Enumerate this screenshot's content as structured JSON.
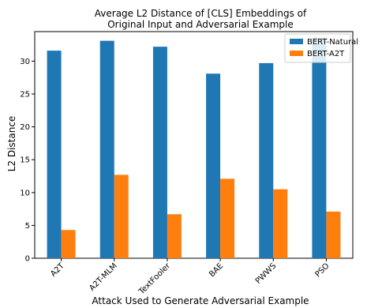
{
  "chart_data": {
    "type": "bar",
    "title": "Average L2 Distance of [CLS] Embeddings of",
    "subtitle": "Original Input and Adversarial Example",
    "xlabel": "Attack Used to Generate Adversarial Example",
    "ylabel": "L2 Distance",
    "categories": [
      "A2T",
      "A2T-MLM",
      "TextFooler",
      "BAE",
      "PWWS",
      "PSO"
    ],
    "series": [
      {
        "name": "BERT-Natural",
        "color": "#1f77b4",
        "values": [
          31.6,
          33.1,
          32.2,
          28.1,
          29.7,
          33.6
        ]
      },
      {
        "name": "BERT-A2T",
        "color": "#ff7f0e",
        "values": [
          4.3,
          12.7,
          6.7,
          12.1,
          10.5,
          7.1
        ]
      }
    ],
    "ylim": [
      0,
      34.5
    ],
    "yticks": [
      0,
      5,
      10,
      15,
      20,
      25,
      30
    ],
    "grid": false,
    "legend": "top-right"
  }
}
